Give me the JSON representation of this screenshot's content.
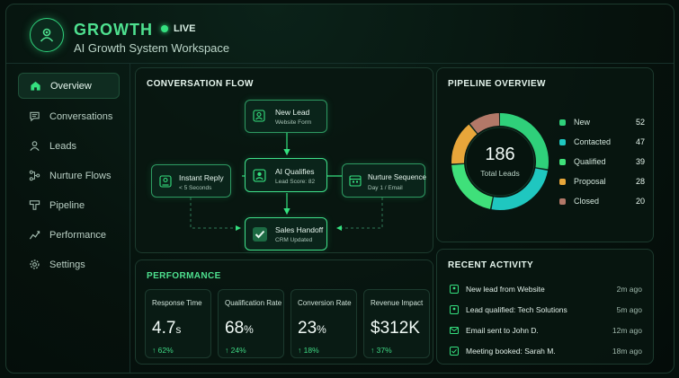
{
  "header": {
    "brand": "GROWTH",
    "live_label": "LIVE",
    "subtitle": "AI Growth System Workspace"
  },
  "sidebar": {
    "items": [
      {
        "label": "Overview",
        "icon": "home-icon",
        "active": true
      },
      {
        "label": "Conversations",
        "icon": "chat-icon"
      },
      {
        "label": "Leads",
        "icon": "users-icon"
      },
      {
        "label": "Nurture Flows",
        "icon": "flow-icon"
      },
      {
        "label": "Pipeline",
        "icon": "funnel-icon"
      },
      {
        "label": "Performance",
        "icon": "chart-icon"
      },
      {
        "label": "Settings",
        "icon": "gear-icon"
      }
    ]
  },
  "conversation_flow": {
    "title": "CONVERSATION FLOW",
    "nodes": {
      "new_lead": {
        "title": "New Lead",
        "sub": "Website Form"
      },
      "instant_reply": {
        "title": "Instant Reply",
        "sub": "< 5 Seconds"
      },
      "ai_qualifies": {
        "title": "AI Qualifies",
        "sub": "Lead Score: 82"
      },
      "nurture_sequence": {
        "title": "Nurture Sequence",
        "sub": "Day 1 / Email"
      },
      "sales_handoff": {
        "title": "Sales Handoff",
        "sub": "CRM Updated"
      }
    }
  },
  "pipeline": {
    "title": "PIPELINE OVERVIEW",
    "total": "186",
    "total_label": "Total Leads",
    "stages": [
      {
        "name": "New",
        "value": 52,
        "color": "#2fd07a"
      },
      {
        "name": "Contacted",
        "value": 47,
        "color": "#1fc7c0"
      },
      {
        "name": "Qualified",
        "value": 39,
        "color": "#3fe07a"
      },
      {
        "name": "Proposal",
        "value": 28,
        "color": "#e8a63a"
      },
      {
        "name": "Closed",
        "value": 20,
        "color": "#b27868"
      }
    ]
  },
  "performance": {
    "title": "PERFORMANCE",
    "metrics": [
      {
        "label": "Response Time",
        "value": "4.7",
        "unit": "s",
        "change": "↑ 62%"
      },
      {
        "label": "Qualification Rate",
        "value": "68",
        "unit": "%",
        "change": "↑ 24%"
      },
      {
        "label": "Conversion Rate",
        "value": "23",
        "unit": "%",
        "change": "↑ 18%"
      },
      {
        "label": "Revenue Impact",
        "value": "$312K",
        "unit": "",
        "change": "↑ 37%"
      }
    ]
  },
  "activity": {
    "title": "RECENT ACTIVITY",
    "items": [
      {
        "text": "New lead from Website",
        "time": "2m ago"
      },
      {
        "text": "Lead qualified: Tech Solutions",
        "time": "5m ago"
      },
      {
        "text": "Email sent to John D.",
        "time": "12m ago"
      },
      {
        "text": "Meeting booked: Sarah M.",
        "time": "18m ago"
      }
    ]
  }
}
